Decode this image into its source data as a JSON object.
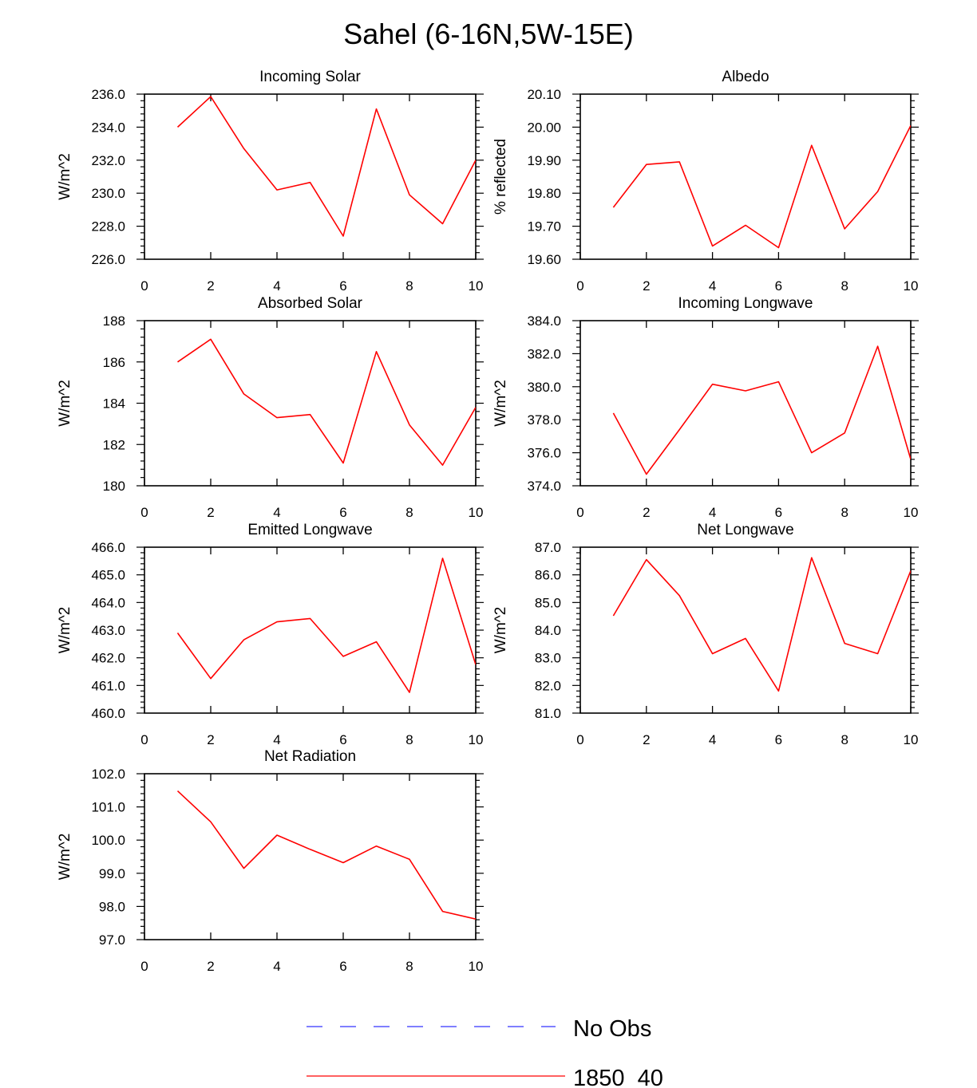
{
  "title": "Sahel (6-16N,5W-15E)",
  "colors": {
    "model_line": "#ff0000",
    "obs_line": "#3333ff",
    "axis": "#000000"
  },
  "legend": [
    {
      "label": "No Obs",
      "style": "dashed",
      "color": "#3333ff"
    },
    {
      "label": "1850_40",
      "style": "solid",
      "color": "#ff0000"
    }
  ],
  "chart_data": [
    {
      "type": "line",
      "title": "Incoming Solar",
      "ylabel": "W/m^2",
      "xlim": [
        0,
        10
      ],
      "xticks": [
        0,
        2,
        4,
        6,
        8,
        10
      ],
      "ylim": [
        226,
        236
      ],
      "yticks": [
        226,
        228,
        230,
        232,
        234,
        236
      ],
      "ydecimals": 1,
      "series": [
        {
          "name": "1850_40",
          "x": [
            1,
            2,
            3,
            4,
            5,
            6,
            7,
            8,
            9,
            10
          ],
          "values": [
            234.0,
            235.85,
            232.7,
            230.2,
            230.65,
            227.4,
            235.1,
            229.9,
            228.15,
            232.0
          ]
        }
      ]
    },
    {
      "type": "line",
      "title": "Albedo",
      "ylabel": "% reflected",
      "xlim": [
        0,
        10
      ],
      "xticks": [
        0,
        2,
        4,
        6,
        8,
        10
      ],
      "ylim": [
        19.6,
        20.1
      ],
      "yticks": [
        19.6,
        19.7,
        19.8,
        19.9,
        20.0,
        20.1
      ],
      "ydecimals": 2,
      "series": [
        {
          "name": "1850_40",
          "x": [
            1,
            2,
            3,
            4,
            5,
            6,
            7,
            8,
            9,
            10
          ],
          "values": [
            19.757,
            19.887,
            19.895,
            19.64,
            19.703,
            19.635,
            19.945,
            19.692,
            19.805,
            20.005
          ]
        }
      ]
    },
    {
      "type": "line",
      "title": "Absorbed Solar",
      "ylabel": "W/m^2",
      "xlim": [
        0,
        10
      ],
      "xticks": [
        0,
        2,
        4,
        6,
        8,
        10
      ],
      "ylim": [
        180,
        188
      ],
      "yticks": [
        180,
        182,
        184,
        186,
        188
      ],
      "ydecimals": 0,
      "series": [
        {
          "name": "1850_40",
          "x": [
            1,
            2,
            3,
            4,
            5,
            6,
            7,
            8,
            9,
            10
          ],
          "values": [
            186.0,
            187.1,
            184.45,
            183.3,
            183.45,
            181.1,
            186.5,
            182.95,
            181.0,
            183.8
          ]
        }
      ]
    },
    {
      "type": "line",
      "title": "Incoming Longwave",
      "ylabel": "W/m^2",
      "xlim": [
        0,
        10
      ],
      "xticks": [
        0,
        2,
        4,
        6,
        8,
        10
      ],
      "ylim": [
        374,
        384
      ],
      "yticks": [
        374,
        376,
        378,
        380,
        382,
        384
      ],
      "ydecimals": 1,
      "series": [
        {
          "name": "1850_40",
          "x": [
            1,
            2,
            3,
            4,
            5,
            6,
            7,
            8,
            9,
            10
          ],
          "values": [
            378.4,
            374.7,
            377.4,
            380.15,
            379.75,
            380.3,
            376.0,
            377.2,
            382.45,
            375.6
          ]
        }
      ]
    },
    {
      "type": "line",
      "title": "Emitted Longwave",
      "ylabel": "W/m^2",
      "xlim": [
        0,
        10
      ],
      "xticks": [
        0,
        2,
        4,
        6,
        8,
        10
      ],
      "ylim": [
        460,
        466
      ],
      "yticks": [
        460,
        461,
        462,
        463,
        464,
        465,
        466
      ],
      "ydecimals": 1,
      "series": [
        {
          "name": "1850_40",
          "x": [
            1,
            2,
            3,
            4,
            5,
            6,
            7,
            8,
            9,
            10
          ],
          "values": [
            462.9,
            461.25,
            462.65,
            463.3,
            463.42,
            462.05,
            462.58,
            460.75,
            465.6,
            461.75
          ]
        }
      ]
    },
    {
      "type": "line",
      "title": "Net Longwave",
      "ylabel": "W/m^2",
      "xlim": [
        0,
        10
      ],
      "xticks": [
        0,
        2,
        4,
        6,
        8,
        10
      ],
      "ylim": [
        81,
        87
      ],
      "yticks": [
        81,
        82,
        83,
        84,
        85,
        86,
        87
      ],
      "ydecimals": 1,
      "series": [
        {
          "name": "1850_40",
          "x": [
            1,
            2,
            3,
            4,
            5,
            6,
            7,
            8,
            9,
            10
          ],
          "values": [
            84.52,
            86.55,
            85.25,
            83.15,
            83.7,
            81.8,
            86.62,
            83.52,
            83.15,
            86.15
          ]
        }
      ]
    },
    {
      "type": "line",
      "title": "Net Radiation",
      "ylabel": "W/m^2",
      "xlim": [
        0,
        10
      ],
      "xticks": [
        0,
        2,
        4,
        6,
        8,
        10
      ],
      "ylim": [
        97,
        102
      ],
      "yticks": [
        97,
        98,
        99,
        100,
        101,
        102
      ],
      "ydecimals": 1,
      "series": [
        {
          "name": "1850_40",
          "x": [
            1,
            2,
            3,
            4,
            5,
            6,
            7,
            8,
            9,
            10
          ],
          "values": [
            101.48,
            100.55,
            99.15,
            100.15,
            99.72,
            99.32,
            99.82,
            99.42,
            97.85,
            97.62
          ]
        }
      ]
    }
  ]
}
